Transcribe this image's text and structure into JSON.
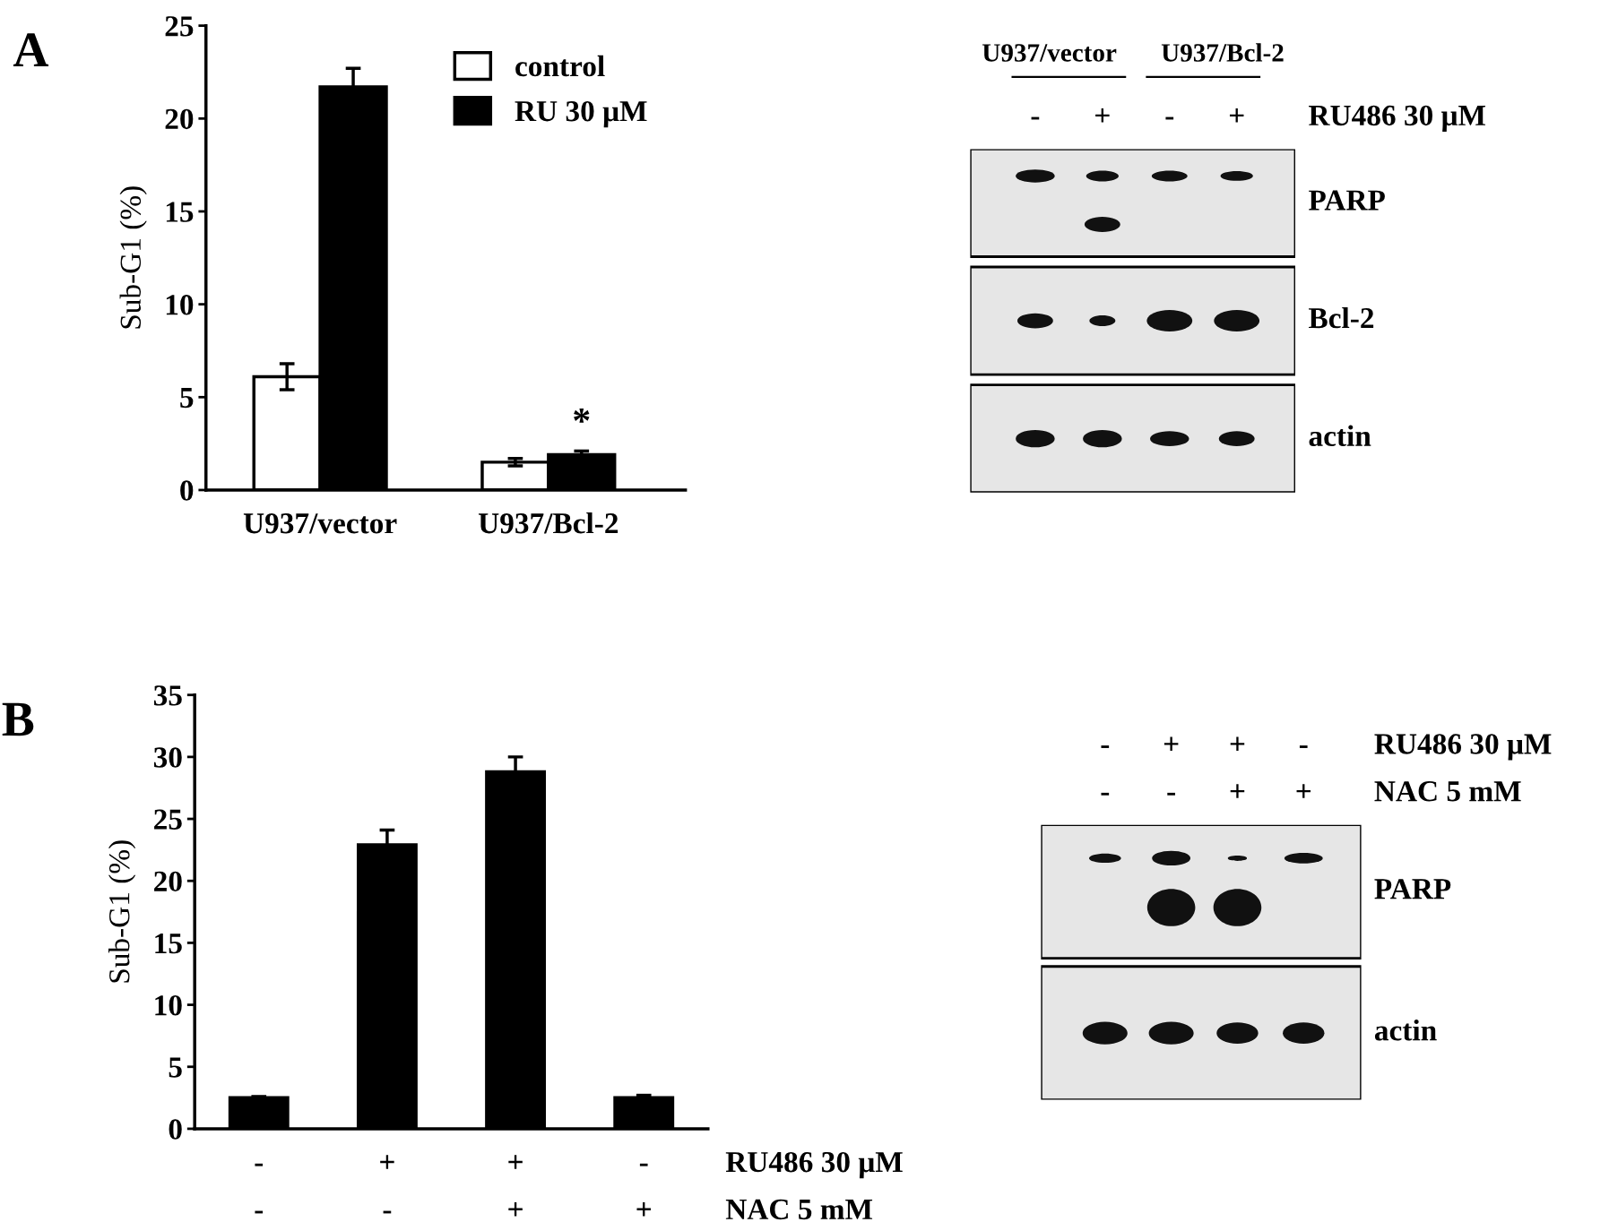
{
  "chart_data": [
    {
      "type": "bar",
      "ylabel": "Sub-G1 (%)",
      "categories": [
        "U937/vector",
        "U937/Bcl-2"
      ],
      "series": [
        {
          "name": "control",
          "color": "#ffffff",
          "values": [
            6.1,
            1.5
          ],
          "errors": [
            0.7,
            0.2
          ]
        },
        {
          "name": "RU 30 μM",
          "color": "#000000",
          "values": [
            21.7,
            1.9
          ],
          "errors": [
            1.0,
            0.2
          ]
        }
      ],
      "ylim": [
        0,
        25
      ],
      "yticks": [
        0,
        5,
        10,
        15,
        20,
        25
      ],
      "grid": false,
      "legend": "top",
      "annotations": [
        "A",
        "*"
      ]
    },
    {
      "type": "other",
      "categories": [
        "-",
        "+",
        "-",
        "+"
      ],
      "y_categories": [
        "PARP",
        "Bcl-2",
        "actin"
      ],
      "annotations": [
        "U937/vector",
        "U937/Bcl-2",
        "RU486 30 μM"
      ]
    },
    {
      "type": "bar",
      "ylabel": "Sub-G1 (%)",
      "categories": [
        "-\n-",
        "+\n-",
        "+\n+",
        "-\n+"
      ],
      "series": [
        {
          "color": "#000000",
          "values": [
            2.5,
            22.9,
            28.8,
            2.5
          ],
          "errors": [
            0.1,
            1.2,
            1.2,
            0.2
          ]
        }
      ],
      "ylim": [
        0,
        35
      ],
      "yticks": [
        0,
        5,
        10,
        15,
        20,
        25,
        30,
        35
      ],
      "grid": false,
      "annotations": [
        "B",
        "RU486 30 μM",
        "NAC 5 mM"
      ]
    },
    {
      "type": "other",
      "categories": [
        "-\n-",
        "+\n-",
        "+\n+",
        "-\n+"
      ],
      "y_categories": [
        "PARP",
        "actin"
      ],
      "annotations": [
        "RU486 30 μM",
        "NAC 5 mM"
      ]
    }
  ]
}
